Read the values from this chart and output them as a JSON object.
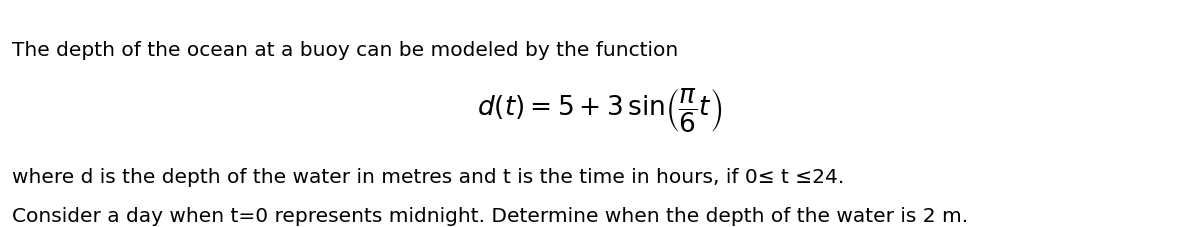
{
  "line1": "The depth of the ocean at a buoy can be modeled by the function",
  "line3": "where d is the depth of the water in metres and t is the time in hours, if 0≤ t ≤24.",
  "line4": "Consider a day when t=0 represents midnight. Determine when the depth of the water is 2 m.",
  "formula": "$d(t) = 5 + 3\\,\\sin\\!\\left(\\dfrac{\\pi}{6}t\\right)$",
  "bg_color": "#ffffff",
  "text_color": "#000000",
  "font_size_body": 14.5,
  "font_size_formula": 19,
  "fig_width": 12.0,
  "fig_height": 2.27,
  "dpi": 100
}
